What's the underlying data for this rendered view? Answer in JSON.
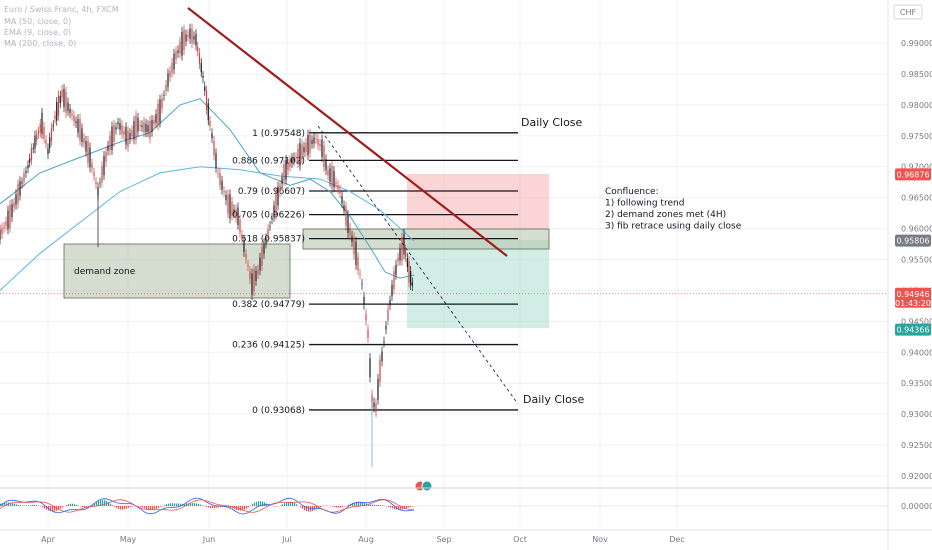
{
  "chart_data": {
    "type": "line",
    "title": "Euro / Swiss Franc, 4h, FXCM",
    "currency": "CHF",
    "indicators": [
      "MA (50, close, 0)",
      "EMA (9, close, 0)",
      "MA (200, close, 0)"
    ],
    "xlabels": [
      "Apr",
      "May",
      "Jun",
      "Jul",
      "Aug",
      "Sep",
      "Oct",
      "Nov",
      "Dec"
    ],
    "yticks": [
      "0.99000",
      "0.98500",
      "0.98000",
      "0.97500",
      "0.97000",
      "0.96500",
      "0.96000",
      "0.95500",
      "0.95000",
      "0.94500",
      "0.94000",
      "0.93500",
      "0.93000",
      "0.92500",
      "0.92000"
    ],
    "ylim": [
      0.9176,
      0.9951
    ],
    "osc_tick": "0.00000",
    "price_tags": [
      {
        "value": 0.96876,
        "label": "0.96876",
        "color": "#ef5350"
      },
      {
        "value": 0.95806,
        "label": "0.95806",
        "color": "#787b86"
      },
      {
        "value": 0.94946,
        "label": "0.94946",
        "sub": "01:43:20",
        "color": "#ef5350"
      },
      {
        "value": 0.94366,
        "label": "0.94366",
        "color": "#26a69a"
      }
    ],
    "fib_levels": [
      {
        "label": "1 (0.97548)",
        "value": 0.97548
      },
      {
        "label": "0.886 (0.97102)",
        "value": 0.97102
      },
      {
        "label": "0.79 (0.96607)",
        "value": 0.96607
      },
      {
        "label": "0.705 (0.96226)",
        "value": 0.96226
      },
      {
        "label": "0.618 (0.95837)",
        "value": 0.95837
      },
      {
        "label": "0.382 (0.94779)",
        "value": 0.94779
      },
      {
        "label": "0.236 (0.94125)",
        "value": 0.94125
      },
      {
        "label": "0 (0.93068)",
        "value": 0.93068
      }
    ],
    "daily_close_labels": [
      "Daily Close",
      "Daily Close"
    ],
    "demand_zone_label": "demand zone",
    "confluence": [
      "Confluence:",
      "1) following trend",
      "2) demand zones met (4H)",
      "3) fib retrace using daily close"
    ],
    "price_path": [
      [
        0,
        0.959
      ],
      [
        10,
        0.962
      ],
      [
        20,
        0.9665
      ],
      [
        28,
        0.97
      ],
      [
        35,
        0.974
      ],
      [
        42,
        0.977
      ],
      [
        48,
        0.9725
      ],
      [
        55,
        0.978
      ],
      [
        62,
        0.9818
      ],
      [
        70,
        0.979
      ],
      [
        80,
        0.976
      ],
      [
        90,
        0.9715
      ],
      [
        98,
        0.966
      ],
      [
        108,
        0.973
      ],
      [
        118,
        0.977
      ],
      [
        128,
        0.9745
      ],
      [
        138,
        0.9768
      ],
      [
        150,
        0.976
      ],
      [
        160,
        0.979
      ],
      [
        168,
        0.984
      ],
      [
        176,
        0.988
      ],
      [
        184,
        0.9905
      ],
      [
        190,
        0.9915
      ],
      [
        196,
        0.9905
      ],
      [
        203,
        0.9845
      ],
      [
        210,
        0.977
      ],
      [
        218,
        0.969
      ],
      [
        228,
        0.964
      ],
      [
        238,
        0.962
      ],
      [
        246,
        0.9555
      ],
      [
        252,
        0.951
      ],
      [
        258,
        0.953
      ],
      [
        266,
        0.958
      ],
      [
        276,
        0.964
      ],
      [
        284,
        0.969
      ],
      [
        292,
        0.971
      ],
      [
        300,
        0.972
      ],
      [
        308,
        0.9735
      ],
      [
        316,
        0.9745
      ],
      [
        322,
        0.973
      ],
      [
        328,
        0.969
      ],
      [
        334,
        0.968
      ],
      [
        340,
        0.966
      ],
      [
        346,
        0.962
      ],
      [
        350,
        0.9595
      ],
      [
        356,
        0.956
      ],
      [
        362,
        0.951
      ],
      [
        368,
        0.943
      ],
      [
        372,
        0.932
      ],
      [
        376,
        0.931
      ],
      [
        380,
        0.937
      ],
      [
        386,
        0.944
      ],
      [
        392,
        0.95
      ],
      [
        398,
        0.955
      ],
      [
        404,
        0.9575
      ],
      [
        409,
        0.953
      ],
      [
        414,
        0.95
      ]
    ],
    "ma50_path": [
      [
        0,
        0.964
      ],
      [
        40,
        0.969
      ],
      [
        80,
        0.9715
      ],
      [
        120,
        0.974
      ],
      [
        150,
        0.9755
      ],
      [
        180,
        0.98
      ],
      [
        200,
        0.981
      ],
      [
        230,
        0.976
      ],
      [
        260,
        0.969
      ],
      [
        290,
        0.967
      ],
      [
        310,
        0.968
      ],
      [
        330,
        0.966
      ],
      [
        350,
        0.962
      ],
      [
        370,
        0.957
      ],
      [
        385,
        0.953
      ],
      [
        400,
        0.952
      ],
      [
        414,
        0.9525
      ]
    ],
    "ma200_path": [
      [
        0,
        0.95
      ],
      [
        40,
        0.956
      ],
      [
        80,
        0.961
      ],
      [
        120,
        0.966
      ],
      [
        160,
        0.969
      ],
      [
        200,
        0.97
      ],
      [
        240,
        0.9695
      ],
      [
        280,
        0.9685
      ],
      [
        320,
        0.968
      ],
      [
        350,
        0.966
      ],
      [
        380,
        0.963
      ],
      [
        414,
        0.958
      ]
    ]
  }
}
